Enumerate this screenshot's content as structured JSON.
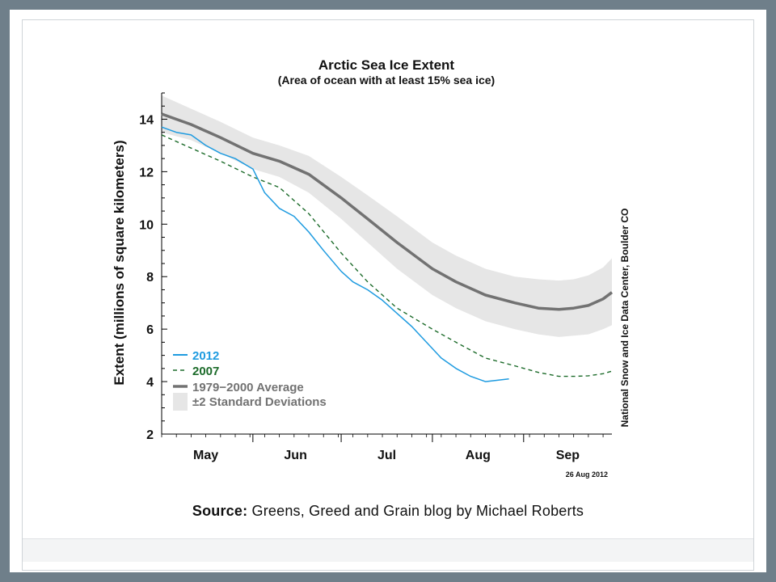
{
  "caption": {
    "prefix": "Source:",
    "text": "Greens, Greed and Grain blog by Michael Roberts"
  },
  "chart_data": {
    "type": "line",
    "title": "Arctic Sea Ice Extent",
    "subtitle": "(Area of ocean with at least 15% sea ice)",
    "ylabel": "Extent (millions of square kilometers)",
    "xlabel": "",
    "ylim": [
      2,
      15
    ],
    "yticks": [
      2,
      4,
      6,
      8,
      10,
      12,
      14
    ],
    "xticklabels": [
      "May",
      "Jun",
      "Jul",
      "Aug",
      "Sep"
    ],
    "side_credit": "National Snow and Ice Data Center, Boulder CO",
    "date_stamp": "26 Aug 2012",
    "grid": false,
    "legend_position": "bottom-left",
    "legend": [
      {
        "label": "2012",
        "color": "#1e9be0",
        "style": "solid"
      },
      {
        "label": "2007",
        "color": "#1c6b2a",
        "style": "dashed"
      },
      {
        "label": "1979−2000 Average",
        "color": "#727272",
        "style": "solid-thick"
      },
      {
        "label": "±2 Standard Deviations",
        "color": "#e6e6e6",
        "style": "band"
      }
    ],
    "x_domain_days": [
      0,
      153
    ],
    "month_boundaries_days": [
      0,
      31,
      61,
      92,
      123
    ],
    "month_label_days": [
      15,
      45.5,
      76.5,
      107.5,
      138
    ],
    "series": [
      {
        "name": "1979−2000 Average",
        "color": "#727272",
        "x": [
          0,
          10,
          20,
          31,
          40,
          50,
          61,
          70,
          80,
          92,
          100,
          110,
          120,
          128,
          135,
          140,
          145,
          150,
          153
        ],
        "y": [
          14.2,
          13.8,
          13.3,
          12.7,
          12.4,
          11.9,
          11.0,
          10.2,
          9.3,
          8.3,
          7.8,
          7.3,
          7.0,
          6.8,
          6.75,
          6.8,
          6.9,
          7.15,
          7.4
        ]
      },
      {
        "name": "2007",
        "color": "#1c6b2a",
        "x": [
          0,
          10,
          20,
          31,
          40,
          50,
          61,
          70,
          80,
          92,
          100,
          110,
          120,
          128,
          135,
          140,
          145,
          150,
          153
        ],
        "y": [
          13.4,
          12.9,
          12.4,
          11.8,
          11.4,
          10.4,
          8.9,
          7.8,
          6.8,
          6.0,
          5.5,
          4.9,
          4.6,
          4.35,
          4.2,
          4.2,
          4.22,
          4.3,
          4.4
        ]
      },
      {
        "name": "2012",
        "color": "#1e9be0",
        "x": [
          0,
          5,
          10,
          15,
          20,
          25,
          31,
          35,
          40,
          45,
          50,
          55,
          61,
          65,
          70,
          75,
          80,
          85,
          90,
          95,
          100,
          105,
          110,
          118
        ],
        "y": [
          13.7,
          13.5,
          13.4,
          13.0,
          12.7,
          12.5,
          12.1,
          11.2,
          10.6,
          10.3,
          9.7,
          9.0,
          8.2,
          7.8,
          7.5,
          7.1,
          6.6,
          6.1,
          5.5,
          4.9,
          4.5,
          4.2,
          4.0,
          4.1
        ]
      }
    ],
    "std_band": {
      "x": [
        0,
        10,
        20,
        31,
        40,
        50,
        61,
        70,
        80,
        92,
        100,
        110,
        120,
        128,
        135,
        140,
        145,
        150,
        153
      ],
      "upper": [
        14.9,
        14.4,
        13.9,
        13.3,
        13.0,
        12.6,
        11.8,
        11.1,
        10.3,
        9.3,
        8.8,
        8.3,
        8.0,
        7.9,
        7.85,
        7.9,
        8.05,
        8.35,
        8.7
      ],
      "lower": [
        13.5,
        13.2,
        12.7,
        12.1,
        11.8,
        11.2,
        10.2,
        9.3,
        8.3,
        7.3,
        6.8,
        6.3,
        6.0,
        5.8,
        5.7,
        5.75,
        5.8,
        6.0,
        6.15
      ]
    }
  }
}
